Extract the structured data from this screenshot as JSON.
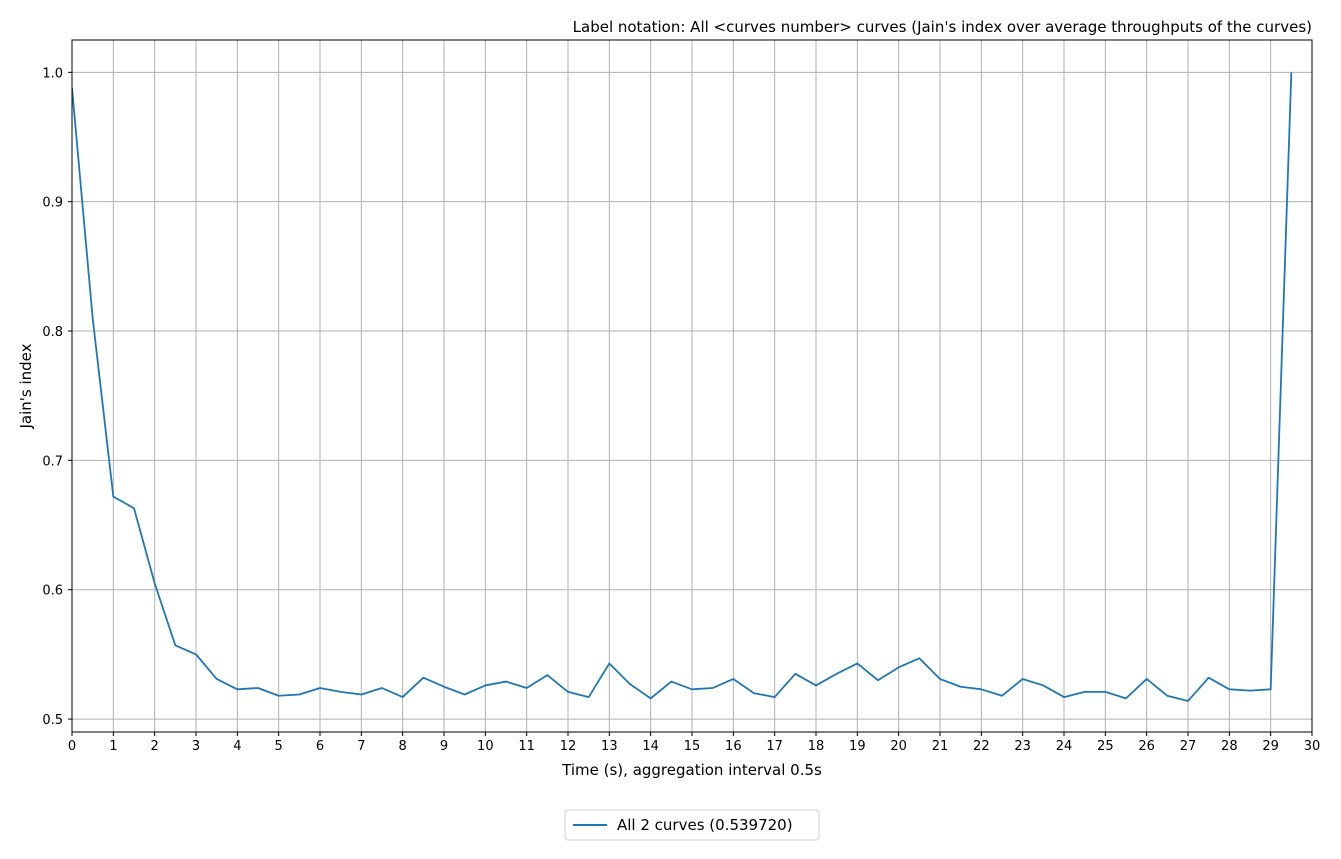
{
  "chart_data": {
    "type": "line",
    "title": "Label notation: All <curves number> curves (Jain's index over average throughputs of the curves)",
    "xlabel": "Time (s), aggregation interval 0.5s",
    "ylabel": "Jain's index",
    "xlim": [
      0,
      30
    ],
    "ylim": [
      0.49,
      1.025
    ],
    "x_ticks": [
      0,
      1,
      2,
      3,
      4,
      5,
      6,
      7,
      8,
      9,
      10,
      11,
      12,
      13,
      14,
      15,
      16,
      17,
      18,
      19,
      20,
      21,
      22,
      23,
      24,
      25,
      26,
      27,
      28,
      29,
      30
    ],
    "y_ticks": [
      0.5,
      0.6,
      0.7,
      0.8,
      0.9,
      1.0
    ],
    "y_tick_labels": [
      "0.5",
      "0.6",
      "0.7",
      "0.8",
      "0.9",
      "1.0"
    ],
    "grid": true,
    "legend_position": "bottom-center-outside",
    "series": [
      {
        "name": "All 2 curves (0.539720)",
        "color": "#1f77b4",
        "x": [
          0,
          0.5,
          1,
          1.5,
          2,
          2.5,
          3,
          3.5,
          4,
          4.5,
          5,
          5.5,
          6,
          6.5,
          7,
          7.5,
          8,
          8.5,
          9,
          9.5,
          10,
          10.5,
          11,
          11.5,
          12,
          12.5,
          13,
          13.5,
          14,
          14.5,
          15,
          15.5,
          16,
          16.5,
          17,
          17.5,
          18,
          18.5,
          19,
          19.5,
          20,
          20.5,
          21,
          21.5,
          22,
          22.5,
          23,
          23.5,
          24,
          24.5,
          25,
          25.5,
          26,
          26.5,
          27,
          27.5,
          28,
          28.5,
          29,
          29.5
        ],
        "y": [
          0.988,
          0.81,
          0.672,
          0.663,
          0.605,
          0.557,
          0.55,
          0.531,
          0.523,
          0.524,
          0.518,
          0.519,
          0.524,
          0.521,
          0.519,
          0.524,
          0.517,
          0.532,
          0.525,
          0.519,
          0.526,
          0.529,
          0.524,
          0.534,
          0.521,
          0.517,
          0.543,
          0.527,
          0.516,
          0.529,
          0.523,
          0.524,
          0.531,
          0.52,
          0.517,
          0.535,
          0.526,
          0.535,
          0.543,
          0.53,
          0.54,
          0.547,
          0.531,
          0.525,
          0.523,
          0.518,
          0.531,
          0.526,
          0.517,
          0.521,
          0.521,
          0.516,
          0.531,
          0.518,
          0.514,
          0.532,
          0.523,
          0.522,
          0.523,
          1.0
        ]
      }
    ]
  }
}
